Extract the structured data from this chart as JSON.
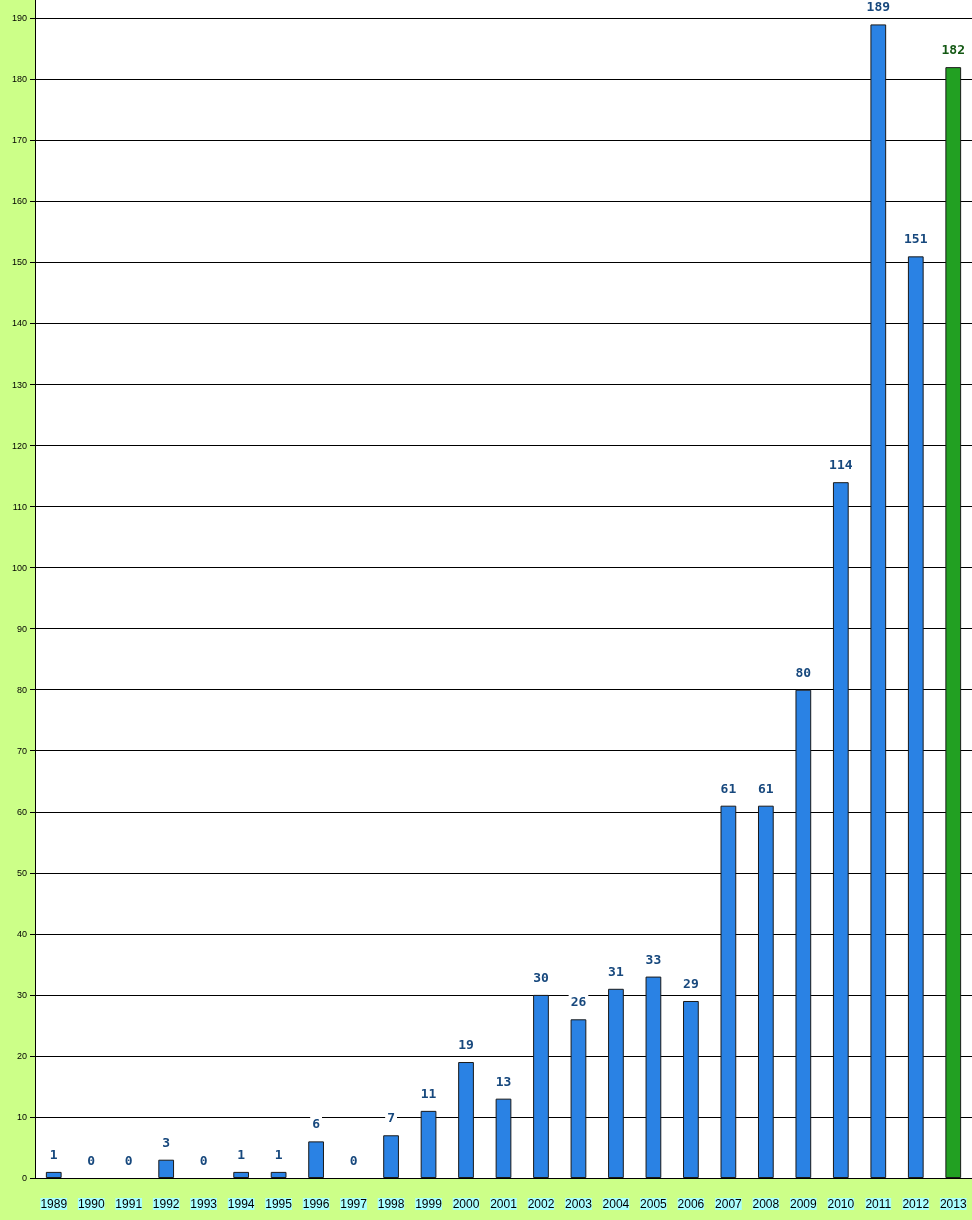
{
  "chart_data": {
    "type": "bar",
    "categories": [
      "1989",
      "1990",
      "1991",
      "1992",
      "1993",
      "1994",
      "1995",
      "1996",
      "1997",
      "1998",
      "1999",
      "2000",
      "2001",
      "2002",
      "2003",
      "2004",
      "2005",
      "2006",
      "2007",
      "2008",
      "2009",
      "2010",
      "2011",
      "2012",
      "2013"
    ],
    "values": [
      1,
      0,
      0,
      3,
      0,
      1,
      1,
      6,
      0,
      7,
      11,
      19,
      13,
      30,
      26,
      31,
      33,
      29,
      61,
      61,
      80,
      114,
      189,
      151,
      182
    ],
    "colors": [
      "#2a82e4",
      "#2a82e4",
      "#2a82e4",
      "#2a82e4",
      "#2a82e4",
      "#2a82e4",
      "#2a82e4",
      "#2a82e4",
      "#2a82e4",
      "#2a82e4",
      "#2a82e4",
      "#2a82e4",
      "#2a82e4",
      "#2a82e4",
      "#2a82e4",
      "#2a82e4",
      "#2a82e4",
      "#2a82e4",
      "#2a82e4",
      "#2a82e4",
      "#2a82e4",
      "#2a82e4",
      "#2a82e4",
      "#2a82e4",
      "#22a022"
    ],
    "ylim": [
      0,
      193
    ],
    "yticks": [
      0,
      10,
      20,
      30,
      40,
      50,
      60,
      70,
      80,
      90,
      100,
      110,
      120,
      130,
      140,
      150,
      160,
      170,
      180,
      190
    ],
    "grid": "y",
    "data_labels": true
  }
}
